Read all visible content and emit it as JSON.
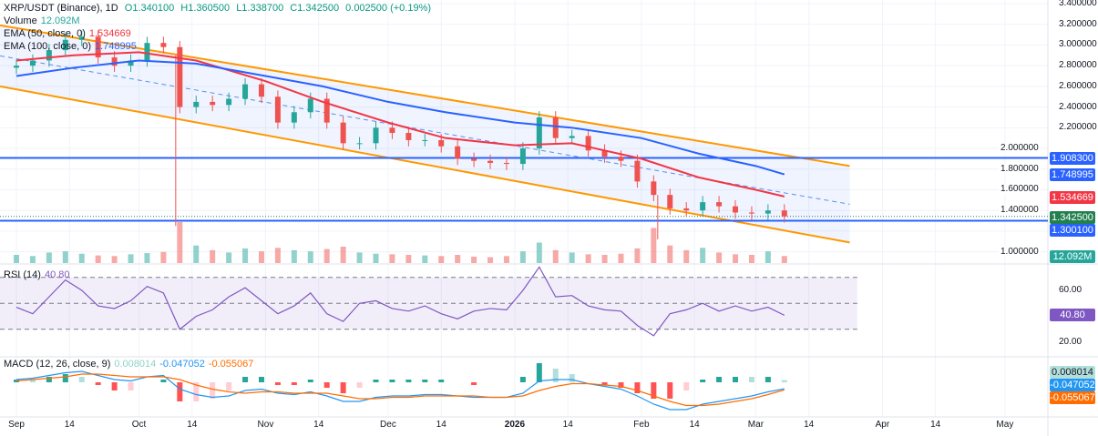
{
  "legend": {
    "symbol": "XRP/USDT (Binance), 1D",
    "open": "O1.340100",
    "high": "H1.360500",
    "low": "L1.338700",
    "close": "C1.342500",
    "change": "0.002500 (+0.19%)",
    "volume_label": "Volume",
    "volume_value": "12.092M",
    "ema50_label": "EMA (50, close, 0)",
    "ema50_value": "1.534669",
    "ema100_label": "EMA (100, close, 0)",
    "ema100_value": "1.748995",
    "rsi_label": "RSI (14)",
    "rsi_value": "40.80",
    "macd_label": "MACD (12, 26, close, 9)",
    "macd_hist": "0.008014",
    "macd_line": "-0.047052",
    "macd_signal": "-0.055067"
  },
  "colors": {
    "up": "#26a69a",
    "down": "#ef5350",
    "ema50": "#f23645",
    "ema100": "#2962ff",
    "channel": "#ff9800",
    "level": "#2962ff",
    "rsi": "#7e57c2",
    "macd": "#2196f3",
    "signal": "#ff6d00"
  },
  "chart_data": {
    "type": "candlestick",
    "price_ticks": [
      "3.400000",
      "3.200000",
      "3.000000",
      "2.800000",
      "2.600000",
      "2.400000",
      "2.200000",
      "2.000000",
      "1.800000",
      "1.600000",
      "1.400000",
      "1.000000"
    ],
    "price_range": [
      1.0,
      3.4
    ],
    "x_ticks": [
      "Sep",
      "14",
      "Oct",
      "14",
      "Nov",
      "14",
      "Dec",
      "14",
      "2026",
      "14",
      "Feb",
      "14",
      "Mar",
      "14",
      "Apr",
      "14",
      "May"
    ],
    "x_tick_dates": [
      "2025-09-01",
      "2025-09-14",
      "2025-10-01",
      "2025-10-14",
      "2025-11-01",
      "2025-11-14",
      "2025-12-01",
      "2025-12-14",
      "2026-01-01",
      "2026-01-14",
      "2026-02-01",
      "2026-02-14",
      "2026-03-01",
      "2026-03-14",
      "2026-04-01",
      "2026-04-14",
      "2026-05-01"
    ],
    "dates": [
      "2025-09-01",
      "2025-09-05",
      "2025-09-09",
      "2025-09-13",
      "2025-09-17",
      "2025-09-21",
      "2025-09-25",
      "2025-09-29",
      "2025-10-03",
      "2025-10-07",
      "2025-10-11",
      "2025-10-15",
      "2025-10-19",
      "2025-10-23",
      "2025-10-27",
      "2025-10-31",
      "2025-11-04",
      "2025-11-08",
      "2025-11-12",
      "2025-11-16",
      "2025-11-20",
      "2025-11-24",
      "2025-11-28",
      "2025-12-02",
      "2025-12-06",
      "2025-12-10",
      "2025-12-14",
      "2025-12-18",
      "2025-12-22",
      "2025-12-26",
      "2025-12-30",
      "2026-01-03",
      "2026-01-07",
      "2026-01-11",
      "2026-01-15",
      "2026-01-19",
      "2026-01-23",
      "2026-01-27",
      "2026-01-31",
      "2026-02-04",
      "2026-02-08",
      "2026-02-12",
      "2026-02-16",
      "2026-02-20",
      "2026-02-24",
      "2026-02-28",
      "2026-03-04",
      "2026-03-08"
    ],
    "close": [
      2.8,
      2.85,
      2.95,
      3.05,
      3.08,
      2.88,
      2.8,
      2.85,
      3.02,
      2.98,
      2.4,
      2.45,
      2.42,
      2.48,
      2.62,
      2.5,
      2.25,
      2.35,
      2.48,
      2.25,
      2.05,
      2.05,
      2.2,
      2.15,
      2.08,
      2.08,
      2.02,
      1.9,
      1.88,
      1.86,
      1.85,
      2.0,
      2.3,
      2.1,
      2.12,
      1.98,
      1.92,
      1.88,
      1.68,
      1.55,
      1.42,
      1.4,
      1.48,
      1.44,
      1.38,
      1.37,
      1.4,
      1.3425
    ],
    "volume_m": [
      14,
      12,
      18,
      20,
      16,
      13,
      12,
      15,
      17,
      19,
      70,
      30,
      22,
      18,
      25,
      20,
      26,
      22,
      20,
      24,
      28,
      18,
      16,
      15,
      14,
      13,
      12,
      14,
      11,
      10,
      12,
      20,
      35,
      22,
      18,
      15,
      14,
      16,
      25,
      60,
      30,
      22,
      26,
      18,
      15,
      14,
      20,
      12.092
    ],
    "ema_dates": [
      "2025-09-01",
      "2025-09-15",
      "2025-10-01",
      "2025-10-15",
      "2025-11-01",
      "2025-11-15",
      "2025-12-01",
      "2025-12-15",
      "2026-01-01",
      "2026-01-15",
      "2026-02-01",
      "2026-02-15",
      "2026-03-01",
      "2026-03-08"
    ],
    "ema50": [
      2.85,
      2.9,
      2.93,
      2.85,
      2.65,
      2.45,
      2.25,
      2.1,
      2.03,
      2.05,
      1.9,
      1.72,
      1.6,
      1.534669
    ],
    "ema100": [
      2.7,
      2.78,
      2.85,
      2.82,
      2.7,
      2.6,
      2.45,
      2.35,
      2.25,
      2.2,
      2.1,
      1.95,
      1.83,
      1.748995
    ],
    "levels": [
      1.9083,
      1.3001
    ],
    "level_labels": [
      "1.908300",
      "1.300100"
    ],
    "last_price_label": "1.342500",
    "channel": {
      "start_date": "2025-08-28",
      "end_date": "2026-03-24",
      "upper": [
        3.19,
        1.83
      ],
      "lower": [
        2.6,
        1.09
      ]
    },
    "rsi": [
      47,
      42,
      55,
      68,
      60,
      48,
      46,
      52,
      63,
      58,
      30,
      40,
      45,
      55,
      62,
      52,
      42,
      48,
      58,
      42,
      36,
      50,
      52,
      46,
      44,
      48,
      42,
      38,
      44,
      46,
      45,
      60,
      78,
      55,
      56,
      48,
      45,
      44,
      33,
      25,
      42,
      45,
      50,
      44,
      48,
      44,
      47,
      40.8
    ],
    "rsi_levels": [
      70,
      50,
      30
    ],
    "rsi_ticks": [
      "60.00",
      "20.00"
    ],
    "macd": [
      0.02,
      0.03,
      0.05,
      0.07,
      0.08,
      0.05,
      0.02,
      0.01,
      0.04,
      0.05,
      -0.05,
      -0.09,
      -0.11,
      -0.1,
      -0.06,
      -0.05,
      -0.08,
      -0.09,
      -0.07,
      -0.1,
      -0.14,
      -0.14,
      -0.11,
      -0.1,
      -0.1,
      -0.09,
      -0.09,
      -0.1,
      -0.11,
      -0.11,
      -0.11,
      -0.08,
      0.01,
      0.02,
      0.02,
      -0.01,
      -0.03,
      -0.05,
      -0.1,
      -0.16,
      -0.2,
      -0.2,
      -0.16,
      -0.14,
      -0.12,
      -0.1,
      -0.07,
      -0.047052
    ],
    "signal": [
      0.01,
      0.02,
      0.03,
      0.04,
      0.06,
      0.06,
      0.05,
      0.04,
      0.04,
      0.04,
      0.02,
      -0.02,
      -0.05,
      -0.07,
      -0.08,
      -0.07,
      -0.07,
      -0.08,
      -0.08,
      -0.08,
      -0.1,
      -0.12,
      -0.12,
      -0.11,
      -0.11,
      -0.1,
      -0.1,
      -0.1,
      -0.1,
      -0.11,
      -0.11,
      -0.1,
      -0.06,
      -0.03,
      -0.01,
      -0.01,
      -0.02,
      -0.03,
      -0.06,
      -0.1,
      -0.14,
      -0.17,
      -0.17,
      -0.16,
      -0.14,
      -0.12,
      -0.09,
      -0.055067
    ]
  }
}
